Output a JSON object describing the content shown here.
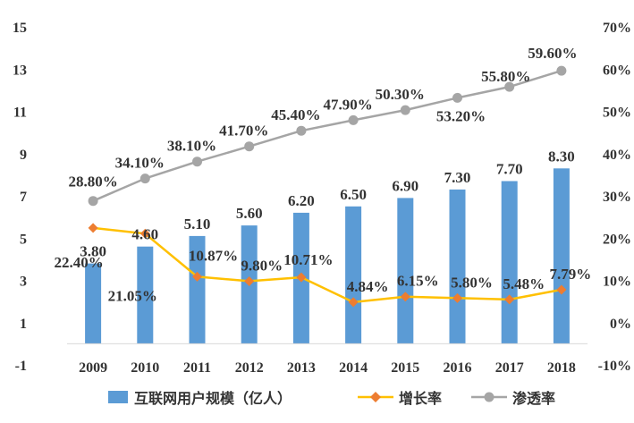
{
  "chart_data": {
    "type": "bar",
    "categories": [
      "2009",
      "2010",
      "2011",
      "2012",
      "2013",
      "2014",
      "2015",
      "2016",
      "2017",
      "2018"
    ],
    "series": [
      {
        "name": "互联网用户规模（亿人）",
        "type": "bar",
        "axis": "left",
        "color": "#5B9BD5",
        "values": [
          3.8,
          4.6,
          5.1,
          5.6,
          6.2,
          6.5,
          6.9,
          7.3,
          7.7,
          8.3
        ],
        "labels": [
          "3.80",
          "4.60",
          "5.10",
          "5.60",
          "6.20",
          "6.50",
          "6.90",
          "7.30",
          "7.70",
          "8.30"
        ]
      },
      {
        "name": "增长率",
        "type": "line",
        "axis": "right",
        "color": "#FFC000",
        "marker_color": "#ED7D31",
        "marker": "diamond",
        "values": [
          22.4,
          21.05,
          10.87,
          9.8,
          10.71,
          4.84,
          6.15,
          5.8,
          5.48,
          7.79
        ],
        "labels": [
          "22.40%",
          "21.05%",
          "10.87%",
          "9.80%",
          "10.71%",
          "4.84%",
          "6.15%",
          "5.80%",
          "5.48%",
          "7.79%"
        ]
      },
      {
        "name": "渗透率",
        "type": "line",
        "axis": "right",
        "color": "#A5A5A5",
        "marker": "circle",
        "values": [
          28.8,
          34.1,
          38.1,
          41.7,
          45.4,
          47.9,
          50.3,
          53.2,
          55.8,
          59.6
        ],
        "labels": [
          "28.80%",
          "34.10%",
          "38.10%",
          "41.70%",
          "45.40%",
          "47.90%",
          "50.30%",
          "53.20%",
          "55.80%",
          "59.60%"
        ]
      }
    ],
    "y_left": {
      "ylim": [
        -1,
        15
      ],
      "ticks": [
        "15",
        "13",
        "11",
        "9",
        "7",
        "5",
        "3",
        "1",
        "-1"
      ]
    },
    "y_right": {
      "ylim": [
        -10,
        70
      ],
      "ticks": [
        "70%",
        "60%",
        "50%",
        "40%",
        "30%",
        "20%",
        "10%",
        "0%",
        "-10%"
      ]
    },
    "grid": false,
    "legend_position": "bottom"
  }
}
